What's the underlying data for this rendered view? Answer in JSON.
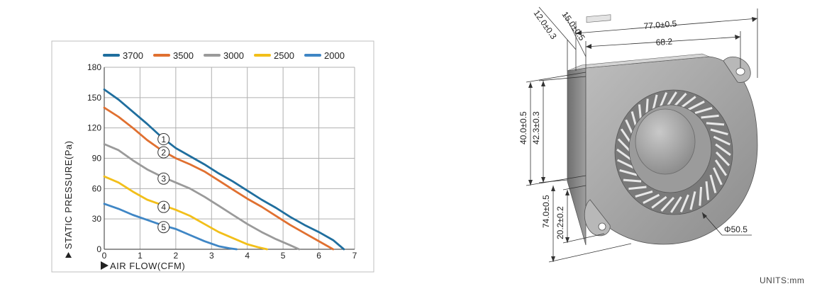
{
  "chart_data": {
    "type": "line",
    "title": "",
    "xlabel": "AIR FLOW(CFM)",
    "ylabel": "STATIC PRESSURE(Pa)",
    "xlim": [
      0,
      7
    ],
    "ylim": [
      0,
      180
    ],
    "x_ticks": [
      "0",
      "1",
      "2",
      "3",
      "4",
      "5",
      "6",
      "7"
    ],
    "y_ticks": [
      "0",
      "30",
      "60",
      "90",
      "120",
      "150",
      "180"
    ],
    "grid": true,
    "legend_position": "top",
    "series": [
      {
        "name": "3700",
        "color": "#1f6e9e",
        "marker": "①",
        "x": [
          0,
          0.4,
          0.8,
          1.2,
          1.6,
          2.0,
          2.4,
          2.8,
          3.2,
          3.6,
          4.0,
          4.4,
          4.8,
          5.2,
          5.6,
          6.0,
          6.4,
          6.7
        ],
        "y": [
          158,
          148,
          136,
          124,
          111,
          100,
          92,
          84,
          75,
          67,
          58,
          49,
          41,
          32,
          24,
          17,
          9,
          0
        ]
      },
      {
        "name": "3500",
        "color": "#e07030",
        "marker": "②",
        "x": [
          0,
          0.4,
          0.8,
          1.2,
          1.6,
          2.0,
          2.4,
          2.8,
          3.2,
          3.6,
          4.0,
          4.4,
          4.8,
          5.2,
          5.6,
          6.0,
          6.4
        ],
        "y": [
          140,
          131,
          120,
          108,
          98,
          90,
          84,
          77,
          68,
          59,
          50,
          42,
          33,
          24,
          16,
          8,
          0
        ]
      },
      {
        "name": "3000",
        "color": "#9a9a9a",
        "marker": "③",
        "x": [
          0,
          0.4,
          0.8,
          1.2,
          1.6,
          2.0,
          2.4,
          2.8,
          3.2,
          3.6,
          4.0,
          4.4,
          4.8,
          5.2,
          5.45
        ],
        "y": [
          104,
          98,
          88,
          79,
          72,
          66,
          60,
          52,
          43,
          34,
          25,
          17,
          10,
          4,
          0
        ]
      },
      {
        "name": "2500",
        "color": "#f2bf1a",
        "marker": "④",
        "x": [
          0,
          0.4,
          0.8,
          1.2,
          1.6,
          2.0,
          2.4,
          2.8,
          3.2,
          3.6,
          4.0,
          4.3,
          4.55
        ],
        "y": [
          72,
          66,
          57,
          49,
          44,
          39,
          33,
          25,
          17,
          11,
          5,
          2,
          0
        ]
      },
      {
        "name": "2000",
        "color": "#3f86c5",
        "marker": "⑤",
        "x": [
          0,
          0.4,
          0.8,
          1.2,
          1.6,
          2.0,
          2.4,
          2.8,
          3.2,
          3.5,
          3.7
        ],
        "y": [
          45,
          40,
          34,
          29,
          24,
          20,
          14,
          8,
          3,
          1,
          0
        ]
      }
    ]
  },
  "drawing": {
    "dimensions": [
      {
        "id": "dim-12",
        "text": "12.0±0.3"
      },
      {
        "id": "dim-15",
        "text": "15.0±0.5"
      },
      {
        "id": "dim-77",
        "text": "77.0±0.5"
      },
      {
        "id": "dim-68",
        "text": "68.2"
      },
      {
        "id": "dim-40",
        "text": "40.0±0.5"
      },
      {
        "id": "dim-42",
        "text": "42.3±0.3"
      },
      {
        "id": "dim-74",
        "text": "74.0±0.5"
      },
      {
        "id": "dim-20",
        "text": "20.2±0.2"
      },
      {
        "id": "dim-phi",
        "text": "Φ50.5"
      }
    ],
    "units_label": "UNITS:mm"
  }
}
